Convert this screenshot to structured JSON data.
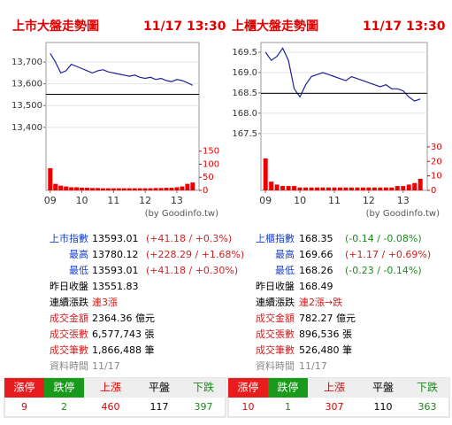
{
  "chart_data": [
    {
      "type": "line",
      "title": "上市大盤走勢圖",
      "subtitle": "11/17 13:30",
      "source": "(by Goodinfo.tw)",
      "x": [
        0,
        10,
        20,
        30,
        40,
        50,
        60,
        70,
        80,
        90,
        100,
        110,
        120,
        130,
        140,
        150,
        160,
        170,
        180,
        190,
        200,
        210,
        220,
        230,
        240,
        250,
        260,
        270
      ],
      "xlim": [
        -8,
        282
      ],
      "xticks": [
        {
          "value": 0,
          "label": "09"
        },
        {
          "value": 60,
          "label": "10"
        },
        {
          "value": 120,
          "label": "11"
        },
        {
          "value": 180,
          "label": "12"
        },
        {
          "value": 240,
          "label": "13"
        }
      ],
      "ylim": [
        13110,
        13790
      ],
      "yticks": [
        {
          "value": 13400,
          "label": "13,400"
        },
        {
          "value": 13500,
          "label": "13,500"
        },
        {
          "value": 13600,
          "label": "13,600"
        },
        {
          "value": 13700,
          "label": "13,700"
        }
      ],
      "y2lim": [
        0,
        566
      ],
      "y2ticks": [
        0,
        50,
        100,
        150
      ],
      "reference": 13551.83,
      "series": [
        {
          "color": "#1f1f9e",
          "values": [
            13740,
            13700,
            13650,
            13660,
            13690,
            13680,
            13670,
            13660,
            13650,
            13660,
            13665,
            13655,
            13650,
            13645,
            13640,
            13635,
            13640,
            13630,
            13625,
            13630,
            13620,
            13625,
            13615,
            13610,
            13620,
            13615,
            13605,
            13593
          ]
        },
        {
          "color": "#ee0000",
          "axis": "y2",
          "values": [
            85,
            25,
            18,
            15,
            12,
            12,
            10,
            10,
            9,
            9,
            8,
            8,
            8,
            8,
            8,
            8,
            8,
            8,
            8,
            8,
            9,
            9,
            10,
            10,
            12,
            15,
            25,
            30
          ]
        }
      ],
      "grid": true
    },
    {
      "type": "line",
      "title": "上櫃大盤走勢圖",
      "subtitle": "11/17 13:30",
      "source": "(by Goodinfo.tw)",
      "x": [
        0,
        10,
        20,
        30,
        40,
        50,
        60,
        70,
        80,
        90,
        100,
        110,
        120,
        130,
        140,
        150,
        160,
        170,
        180,
        190,
        200,
        210,
        220,
        230,
        240,
        250,
        260,
        270
      ],
      "xlim": [
        -8,
        282
      ],
      "xticks": [
        {
          "value": 0,
          "label": "09"
        },
        {
          "value": 60,
          "label": "10"
        },
        {
          "value": 120,
          "label": "11"
        },
        {
          "value": 180,
          "label": "12"
        },
        {
          "value": 240,
          "label": "13"
        }
      ],
      "ylim": [
        166.1,
        169.74
      ],
      "yticks": [
        167.5,
        {
          "value": 168,
          "label": "168.0"
        },
        168.5,
        {
          "value": 169,
          "label": "169.0"
        },
        169.5
      ],
      "y2lim": [
        0,
        102
      ],
      "y2ticks": [
        0,
        10,
        20,
        30
      ],
      "reference": 168.49,
      "series": [
        {
          "color": "#1f1f9e",
          "values": [
            169.5,
            169.3,
            169.4,
            169.6,
            169.3,
            168.6,
            168.4,
            168.7,
            168.9,
            168.95,
            169.0,
            168.95,
            168.9,
            168.85,
            168.8,
            168.9,
            168.85,
            168.8,
            168.75,
            168.7,
            168.65,
            168.7,
            168.6,
            168.6,
            168.55,
            168.4,
            168.3,
            168.35
          ]
        },
        {
          "color": "#ee0000",
          "axis": "y2",
          "values": [
            22,
            6,
            4,
            3,
            3,
            3,
            2,
            2,
            2,
            2,
            2,
            2,
            2,
            2,
            2,
            2,
            2,
            2,
            2,
            2,
            2,
            2,
            2,
            3,
            3,
            4,
            5,
            8
          ]
        }
      ],
      "grid": true
    }
  ],
  "stats": [
    {
      "rows": [
        {
          "label": "上市指數",
          "value": "13593.01",
          "change": "(+41.18 / +0.3%)"
        },
        {
          "label": "最高",
          "value": "13780.12",
          "change": "(+228.29 / +1.68%)"
        },
        {
          "label": "最低",
          "value": "13593.01",
          "change": "(+41.18 / +0.30%)"
        },
        {
          "label": "昨日收盤",
          "value": "13551.83"
        },
        {
          "label": "連續漲跌",
          "value": "連3漲"
        },
        {
          "label": "成交金額",
          "value": "2364.36 億元"
        },
        {
          "label": "成交張數",
          "value": "6,577,743 張"
        },
        {
          "label": "成交筆數",
          "value": "1,866,488 筆"
        },
        {
          "label": "資料時間",
          "value": "11/17"
        }
      ]
    },
    {
      "rows": [
        {
          "label": "上櫃指數",
          "value": "168.35",
          "change": "(-0.14 / -0.08%)"
        },
        {
          "label": "最高",
          "value": "169.66",
          "change": "(+1.17 / +0.69%)"
        },
        {
          "label": "最低",
          "value": "168.26",
          "change": "(-0.23 / -0.14%)"
        },
        {
          "label": "昨日收盤",
          "value": "168.49"
        },
        {
          "label": "連續漲跌",
          "value": "連2漲→跌"
        },
        {
          "label": "成交金額",
          "value": "782.27 億元"
        },
        {
          "label": "成交張數",
          "value": "896,536 張"
        },
        {
          "label": "成交筆數",
          "value": "526,480 筆"
        },
        {
          "label": "資料時間",
          "value": "11/17"
        }
      ]
    }
  ],
  "breadth": [
    {
      "headers": [
        "漲停",
        "跌停",
        "上漲",
        "平盤",
        "下跌"
      ],
      "values": [
        9,
        2,
        460,
        117,
        397
      ]
    },
    {
      "headers": [
        "漲停",
        "跌停",
        "上漲",
        "平盤",
        "下跌"
      ],
      "values": [
        10,
        1,
        307,
        110,
        363
      ]
    }
  ]
}
